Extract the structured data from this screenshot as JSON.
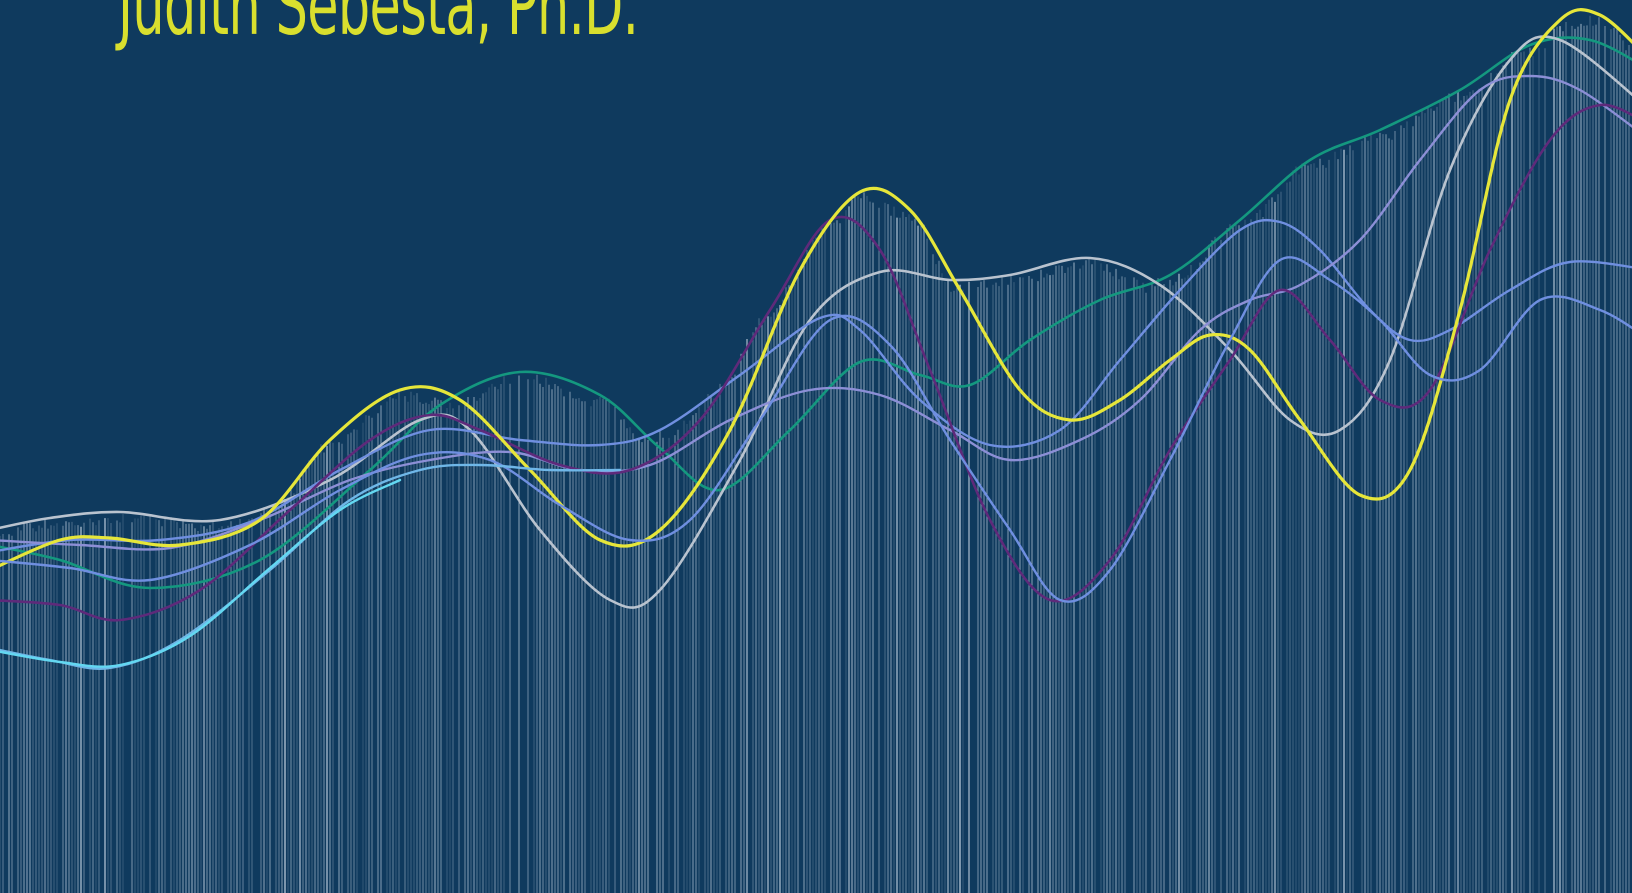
{
  "cover": {
    "author": "Judith Sebesta, Ph.D."
  },
  "colors": {
    "background": "#0f3a5e",
    "author_text": "#d9df2e",
    "stripes": "#c8d6e4",
    "lines": {
      "yellow": "#e6e63a",
      "teal": "#14987f",
      "silver": "#b9c3cf",
      "periwinkle": "#6f8fe0",
      "lavender": "#8c8fd6",
      "purple": "#5e2a7a",
      "sky": "#6fb7e8",
      "cyan": "#63d8f2"
    }
  },
  "decoration": {
    "type": "abstract line-graph artwork",
    "icon": "wave-lines-artwork",
    "series_count": 9
  }
}
